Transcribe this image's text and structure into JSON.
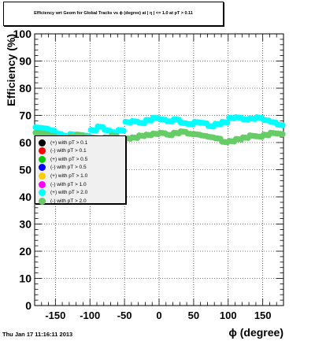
{
  "title": "Efficiency wrt Geom for Global Tracks vs ϕ (degree) at | η | <= 1.0 at pT > 0.11",
  "footer": "Thu Jan 17 11:16:11 2013",
  "chart_data": {
    "type": "scatter",
    "xlabel": "ϕ (degree)",
    "ylabel": "Efficiency (%)",
    "xlim": [
      -180,
      180
    ],
    "ylim": [
      0,
      100
    ],
    "xticks": [
      -150,
      -100,
      -50,
      0,
      50,
      100,
      150
    ],
    "yticks": [
      0,
      10,
      20,
      30,
      40,
      50,
      60,
      70,
      80,
      90,
      100
    ],
    "grid": true,
    "legend_position": "left-middle",
    "x": [
      -175,
      -165,
      -155,
      -145,
      -135,
      -125,
      -115,
      -105,
      -95,
      -85,
      -75,
      -65,
      -55,
      -45,
      -35,
      -25,
      -15,
      -5,
      5,
      15,
      25,
      35,
      45,
      55,
      65,
      75,
      85,
      95,
      105,
      115,
      125,
      135,
      145,
      155,
      165,
      175
    ],
    "series": [
      {
        "name": "(+) with pT > 0.1",
        "color": "#000000",
        "values": []
      },
      {
        "name": "(-) with pT > 0.1",
        "color": "#ff0000",
        "values": []
      },
      {
        "name": "(+) with pT > 0.5",
        "color": "#00cc00",
        "values": []
      },
      {
        "name": "(-) with pT > 0.5",
        "color": "#0000ff",
        "values": []
      },
      {
        "name": "(+) with pT > 1.0",
        "color": "#ffcc00",
        "values": []
      },
      {
        "name": "(-) with pT > 1.0",
        "color": "#ff00ff",
        "values": []
      },
      {
        "name": "(+) with pT > 2.0",
        "color": "#00ffff",
        "values": [
          65.5,
          65.2,
          64.5,
          63.2,
          62.5,
          63.0,
          62.8,
          62.5,
          64.5,
          65.8,
          64.5,
          63.8,
          64.5,
          67.5,
          67.8,
          67.2,
          68.2,
          69.0,
          68.5,
          67.8,
          68.5,
          67.2,
          66.8,
          67.5,
          67.2,
          66.0,
          66.8,
          67.5,
          69.0,
          69.2,
          68.5,
          68.8,
          69.2,
          68.2,
          67.5,
          66.5
        ]
      },
      {
        "name": "(-) with pT > 2.0",
        "color": "#66cc66",
        "values": [
          63.5,
          63.2,
          62.5,
          61.8,
          61.5,
          62.2,
          62.8,
          62.0,
          61.8,
          61.5,
          61.8,
          62.5,
          61.0,
          61.5,
          61.8,
          62.5,
          62.8,
          63.2,
          63.5,
          62.8,
          63.5,
          64.0,
          63.2,
          63.0,
          62.5,
          62.0,
          61.5,
          60.2,
          60.5,
          61.2,
          61.8,
          62.5,
          62.2,
          62.8,
          63.5,
          63.2
        ]
      }
    ]
  }
}
